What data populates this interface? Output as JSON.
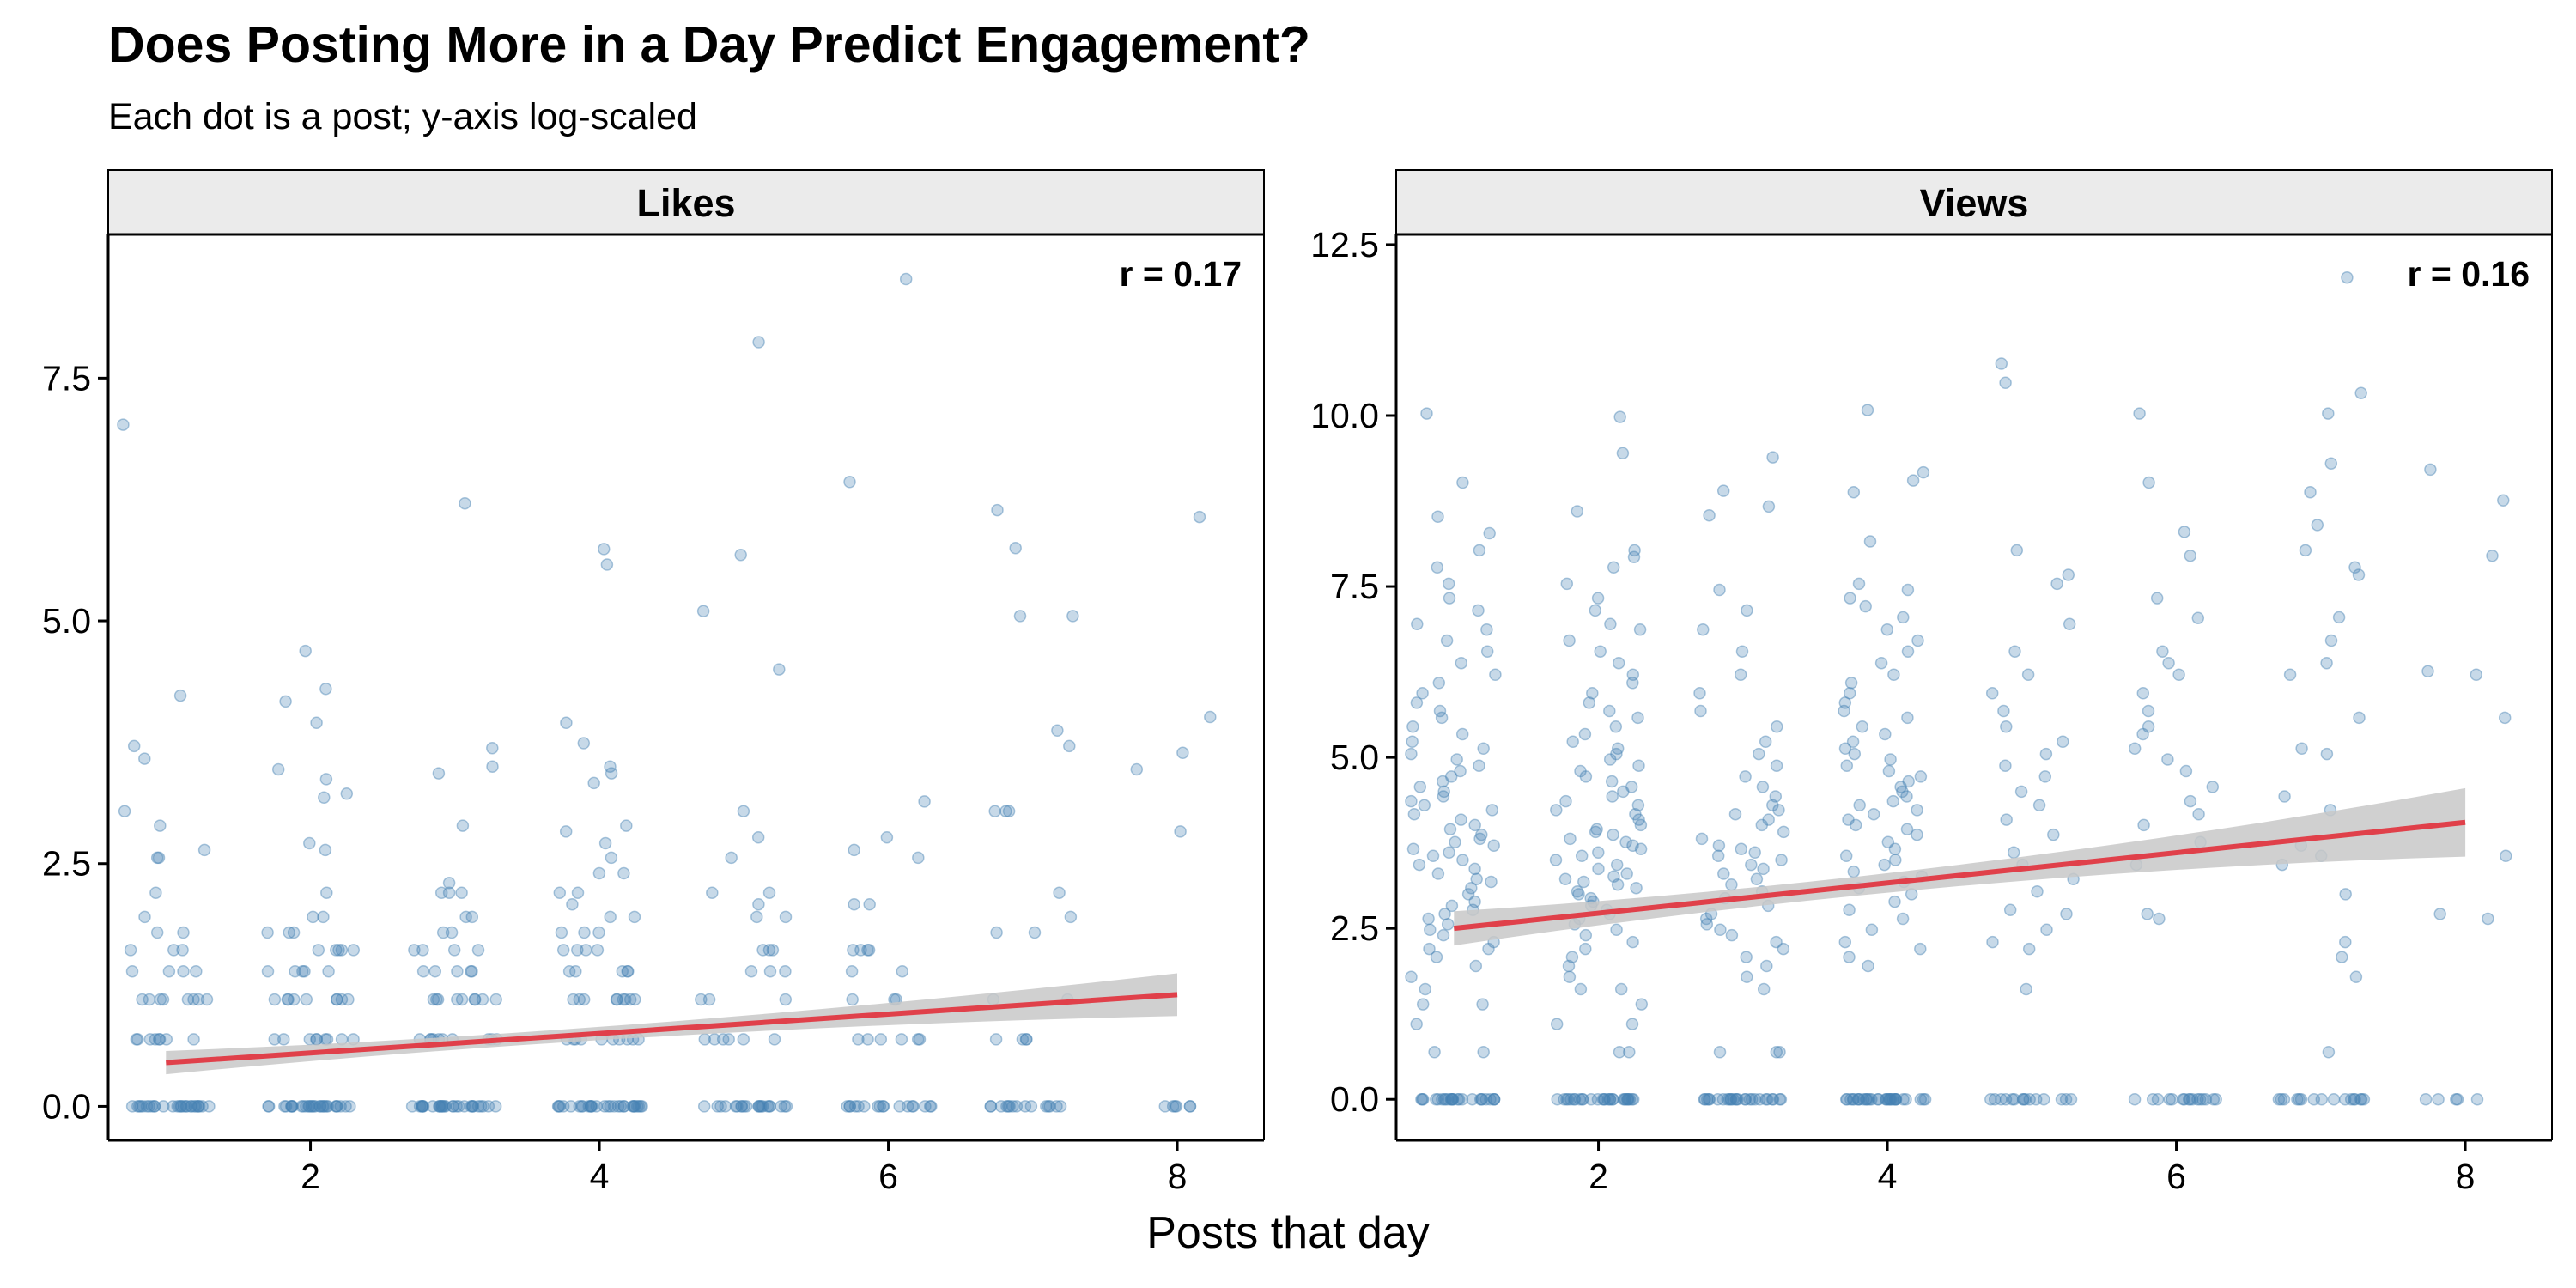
{
  "header": {
    "title": "Does Posting More in a Day Predict Engagement?",
    "subtitle": "Each dot is a post; y-axis log-scaled"
  },
  "colors": {
    "points": "#4682b4",
    "fit_line": "#e0404a",
    "ribbon": "#c8c8c8",
    "strip": "#ebebeb"
  },
  "chart_data": [
    {
      "type": "scatter",
      "facet": "Likes",
      "annotation": "r = 0.17",
      "xlabel": "Posts that day",
      "ylabel": "",
      "ylabel_scale": "log",
      "xlim": [
        0.6,
        8.6
      ],
      "ylim": [
        -0.35,
        8.98
      ],
      "xticks": [
        2,
        4,
        6,
        8
      ],
      "xtick_labels": [
        "2",
        "4",
        "6",
        "8"
      ],
      "yticks": [
        0,
        2.5,
        5,
        7.5
      ],
      "ytick_labels": [
        "0.0",
        "2.5",
        "5.0",
        "7.5"
      ],
      "grid": false,
      "fit": {
        "x": [
          1,
          8
        ],
        "y": [
          0.45,
          1.15
        ],
        "ci_halfwidth": [
          0.12,
          0.22
        ]
      },
      "points_by_day": [
        {
          "x": 1,
          "values": [
            0,
            0,
            0,
            0,
            0,
            0,
            0,
            0,
            0,
            0,
            0,
            0,
            0,
            0,
            0,
            0,
            0,
            0,
            0,
            0,
            0,
            0,
            0,
            0,
            0,
            0,
            0,
            0,
            0.69,
            0.69,
            0.69,
            0.69,
            0.69,
            0.69,
            0.69,
            0.69,
            1.1,
            1.1,
            1.1,
            1.1,
            1.1,
            1.1,
            1.1,
            1.1,
            1.39,
            1.39,
            1.39,
            1.39,
            1.61,
            1.61,
            1.61,
            1.79,
            1.79,
            1.95,
            2.2,
            2.56,
            2.56,
            2.64,
            2.89,
            3.04,
            3.58,
            3.71,
            4.23,
            7.02
          ]
        },
        {
          "x": 2,
          "values": [
            0,
            0,
            0,
            0,
            0,
            0,
            0,
            0,
            0,
            0,
            0,
            0,
            0,
            0,
            0,
            0,
            0,
            0,
            0,
            0,
            0,
            0,
            0,
            0,
            0,
            0,
            0,
            0,
            0,
            0,
            0.69,
            0.69,
            0.69,
            0.69,
            0.69,
            0.69,
            0.69,
            0.69,
            0.69,
            1.1,
            1.1,
            1.1,
            1.1,
            1.1,
            1.1,
            1.1,
            1.1,
            1.1,
            1.39,
            1.39,
            1.39,
            1.39,
            1.39,
            1.61,
            1.61,
            1.61,
            1.61,
            1.61,
            1.79,
            1.79,
            1.79,
            1.95,
            1.95,
            2.2,
            2.64,
            2.71,
            3.18,
            3.22,
            3.37,
            3.47,
            3.95,
            4.17,
            4.3,
            4.69
          ]
        },
        {
          "x": 3,
          "values": [
            0,
            0,
            0,
            0,
            0,
            0,
            0,
            0,
            0,
            0,
            0,
            0,
            0,
            0,
            0,
            0,
            0,
            0,
            0,
            0,
            0,
            0,
            0,
            0,
            0,
            0,
            0,
            0,
            0,
            0,
            0.69,
            0.69,
            0.69,
            0.69,
            0.69,
            0.69,
            0.69,
            0.69,
            0.69,
            0.69,
            1.1,
            1.1,
            1.1,
            1.1,
            1.1,
            1.1,
            1.1,
            1.1,
            1.1,
            1.39,
            1.39,
            1.39,
            1.39,
            1.39,
            1.61,
            1.61,
            1.61,
            1.61,
            1.79,
            1.79,
            1.95,
            1.95,
            2.2,
            2.2,
            2.2,
            2.3,
            2.89,
            3.43,
            3.5,
            3.69,
            6.21
          ]
        },
        {
          "x": 4,
          "values": [
            0,
            0,
            0,
            0,
            0,
            0,
            0,
            0,
            0,
            0,
            0,
            0,
            0,
            0,
            0,
            0,
            0,
            0,
            0,
            0,
            0,
            0,
            0,
            0,
            0,
            0,
            0,
            0,
            0,
            0,
            0.69,
            0.69,
            0.69,
            0.69,
            0.69,
            0.69,
            0.69,
            0.69,
            0.69,
            0.69,
            1.1,
            1.1,
            1.1,
            1.1,
            1.1,
            1.1,
            1.1,
            1.1,
            1.1,
            1.39,
            1.39,
            1.39,
            1.39,
            1.39,
            1.61,
            1.61,
            1.61,
            1.61,
            1.79,
            1.79,
            1.79,
            1.95,
            1.95,
            2.08,
            2.2,
            2.2,
            2.4,
            2.4,
            2.56,
            2.71,
            2.83,
            2.89,
            3.33,
            3.43,
            3.5,
            3.74,
            3.95,
            5.58,
            5.74
          ]
        },
        {
          "x": 5,
          "values": [
            0,
            0,
            0,
            0,
            0,
            0,
            0,
            0,
            0,
            0,
            0,
            0,
            0,
            0,
            0,
            0,
            0,
            0,
            0,
            0,
            0,
            0.69,
            0.69,
            0.69,
            0.69,
            0.69,
            0.69,
            1.1,
            1.1,
            1.1,
            1.39,
            1.39,
            1.39,
            1.61,
            1.61,
            1.61,
            1.95,
            1.95,
            2.08,
            2.2,
            2.2,
            2.56,
            2.77,
            3.04,
            4.5,
            5.68,
            5.1,
            7.87
          ]
        },
        {
          "x": 6,
          "values": [
            0,
            0,
            0,
            0,
            0,
            0,
            0,
            0,
            0,
            0,
            0,
            0,
            0,
            0,
            0,
            0,
            0,
            0.69,
            0.69,
            0.69,
            0.69,
            0.69,
            0.69,
            1.1,
            1.1,
            1.1,
            1.39,
            1.39,
            1.61,
            1.61,
            1.61,
            1.61,
            2.08,
            2.08,
            2.56,
            2.64,
            2.77,
            3.14,
            6.43,
            8.52
          ]
        },
        {
          "x": 7,
          "values": [
            0,
            0,
            0,
            0,
            0,
            0,
            0,
            0,
            0,
            0,
            0,
            0,
            0,
            0,
            0,
            0.69,
            0.69,
            0.69,
            0.69,
            1.1,
            1.1,
            1.79,
            1.79,
            1.95,
            2.2,
            3.04,
            3.04,
            3.04,
            3.71,
            3.87,
            5.05,
            5.05,
            5.75,
            6.14
          ]
        },
        {
          "x": 8,
          "values": [
            0,
            0,
            0,
            0,
            0,
            0,
            2.83,
            3.47,
            3.64,
            4.01,
            6.07
          ]
        }
      ]
    },
    {
      "type": "scatter",
      "facet": "Views",
      "annotation": "r = 0.16",
      "xlabel": "Posts that day",
      "ylabel": "",
      "ylabel_scale": "log",
      "xlim": [
        0.6,
        8.6
      ],
      "ylim": [
        -0.6,
        12.65
      ],
      "xticks": [
        2,
        4,
        6,
        8
      ],
      "xtick_labels": [
        "2",
        "4",
        "6",
        "8"
      ],
      "yticks": [
        0,
        2.5,
        5,
        7.5,
        10,
        12.5
      ],
      "ytick_labels": [
        "0.0",
        "2.5",
        "5.0",
        "7.5",
        "10.0",
        "12.5"
      ],
      "grid": false,
      "fit": {
        "x": [
          1,
          8
        ],
        "y": [
          2.5,
          4.05
        ],
        "ci_halfwidth": [
          0.25,
          0.5
        ]
      },
      "points_by_day": [
        {
          "x": 1,
          "values": [
            0,
            0,
            0,
            0,
            0,
            0,
            0,
            0,
            0,
            0,
            0,
            0,
            0,
            0,
            0,
            0,
            0,
            0,
            0,
            0,
            0,
            0,
            0,
            0,
            0,
            0,
            0.69,
            0.69,
            1.1,
            1.39,
            1.39,
            1.61,
            1.79,
            1.95,
            2.08,
            2.2,
            2.2,
            2.3,
            2.4,
            2.48,
            2.56,
            2.64,
            2.71,
            2.77,
            2.83,
            2.89,
            3.0,
            3.09,
            3.18,
            3.22,
            3.3,
            3.37,
            3.43,
            3.5,
            3.56,
            3.61,
            3.66,
            3.71,
            3.76,
            3.81,
            3.87,
            3.95,
            4.01,
            4.09,
            4.17,
            4.23,
            4.3,
            4.36,
            4.43,
            4.5,
            4.57,
            4.65,
            4.72,
            4.8,
            4.88,
            4.97,
            5.05,
            5.13,
            5.23,
            5.34,
            5.45,
            5.58,
            5.68,
            5.8,
            5.94,
            6.09,
            6.21,
            6.38,
            6.55,
            6.71,
            6.87,
            6.95,
            7.15,
            7.33,
            7.54,
            7.78,
            8.03,
            8.28,
            8.52,
            9.02,
            10.03
          ]
        },
        {
          "x": 2,
          "values": [
            0,
            0,
            0,
            0,
            0,
            0,
            0,
            0,
            0,
            0,
            0,
            0,
            0,
            0,
            0,
            0,
            0,
            0,
            0,
            0,
            0,
            0,
            0,
            0,
            0,
            0,
            0,
            0,
            0,
            0.69,
            0.69,
            1.1,
            1.1,
            1.39,
            1.61,
            1.61,
            1.79,
            1.95,
            2.08,
            2.2,
            2.3,
            2.4,
            2.48,
            2.56,
            2.64,
            2.71,
            2.77,
            2.83,
            2.89,
            2.94,
            3.0,
            3.04,
            3.09,
            3.14,
            3.18,
            3.22,
            3.26,
            3.3,
            3.37,
            3.43,
            3.5,
            3.56,
            3.61,
            3.66,
            3.71,
            3.76,
            3.81,
            3.87,
            3.91,
            3.95,
            4.01,
            4.09,
            4.17,
            4.23,
            4.3,
            4.36,
            4.43,
            4.5,
            4.57,
            4.65,
            4.72,
            4.8,
            4.88,
            4.97,
            5.05,
            5.13,
            5.23,
            5.34,
            5.45,
            5.58,
            5.68,
            5.8,
            5.94,
            6.09,
            6.21,
            6.38,
            6.55,
            6.71,
            6.87,
            6.95,
            7.15,
            7.33,
            7.54,
            7.78,
            7.93,
            8.03,
            8.6,
            9.45,
            9.98
          ]
        },
        {
          "x": 3,
          "values": [
            0,
            0,
            0,
            0,
            0,
            0,
            0,
            0,
            0,
            0,
            0,
            0,
            0,
            0,
            0,
            0,
            0,
            0,
            0,
            0,
            0,
            0,
            0,
            0,
            0,
            0,
            0,
            0.69,
            0.69,
            0.69,
            1.61,
            1.79,
            1.95,
            2.08,
            2.2,
            2.3,
            2.4,
            2.48,
            2.56,
            2.64,
            2.71,
            2.83,
            2.94,
            3.04,
            3.14,
            3.22,
            3.3,
            3.37,
            3.43,
            3.5,
            3.56,
            3.61,
            3.66,
            3.71,
            3.81,
            3.91,
            4.01,
            4.09,
            4.17,
            4.23,
            4.3,
            4.43,
            4.57,
            4.72,
            4.88,
            5.05,
            5.23,
            5.45,
            5.68,
            5.94,
            6.21,
            6.55,
            6.87,
            7.15,
            7.45,
            8.54,
            8.67,
            8.9,
            9.39
          ]
        },
        {
          "x": 4,
          "values": [
            0,
            0,
            0,
            0,
            0,
            0,
            0,
            0,
            0,
            0,
            0,
            0,
            0,
            0,
            0,
            0,
            0,
            0,
            0,
            0,
            0,
            0,
            0,
            0,
            0,
            0,
            0,
            0,
            0,
            0,
            0,
            0,
            0,
            1.95,
            2.08,
            2.2,
            2.3,
            2.48,
            2.64,
            2.77,
            2.89,
            3.0,
            3.09,
            3.18,
            3.26,
            3.33,
            3.43,
            3.5,
            3.56,
            3.66,
            3.76,
            3.87,
            3.95,
            4.01,
            4.09,
            4.17,
            4.23,
            4.3,
            4.36,
            4.43,
            4.5,
            4.57,
            4.65,
            4.72,
            4.8,
            4.88,
            4.97,
            5.05,
            5.13,
            5.23,
            5.34,
            5.45,
            5.58,
            5.68,
            5.8,
            5.94,
            6.09,
            6.21,
            6.38,
            6.55,
            6.71,
            6.87,
            7.05,
            7.21,
            7.33,
            7.45,
            7.54,
            8.16,
            8.88,
            9.05,
            9.17,
            10.08
          ]
        },
        {
          "x": 5,
          "values": [
            0,
            0,
            0,
            0,
            0,
            0,
            0,
            0,
            0,
            0,
            0,
            0,
            0,
            0,
            0,
            1.61,
            2.2,
            2.3,
            2.48,
            2.71,
            2.77,
            3.04,
            3.22,
            3.43,
            3.61,
            3.87,
            4.09,
            4.3,
            4.5,
            4.72,
            4.88,
            5.05,
            5.23,
            5.45,
            5.68,
            5.94,
            6.21,
            6.55,
            6.95,
            7.54,
            7.67,
            8.03,
            10.48,
            10.76
          ]
        },
        {
          "x": 6,
          "values": [
            0,
            0,
            0,
            0,
            0,
            0,
            0,
            0,
            0,
            0,
            0,
            0,
            0,
            0,
            0,
            0,
            2.64,
            2.71,
            3.43,
            3.76,
            4.01,
            4.17,
            4.36,
            4.57,
            4.8,
            4.97,
            5.13,
            5.34,
            5.45,
            5.68,
            5.94,
            6.21,
            6.38,
            6.55,
            7.04,
            7.33,
            7.95,
            8.3,
            9.02,
            10.03
          ]
        },
        {
          "x": 7,
          "values": [
            0,
            0,
            0,
            0,
            0,
            0,
            0,
            0,
            0,
            0,
            0,
            0,
            0,
            0,
            0,
            0,
            0.69,
            1.79,
            2.08,
            2.3,
            3.0,
            3.43,
            3.56,
            3.71,
            4.23,
            4.43,
            5.05,
            5.13,
            5.58,
            6.21,
            6.38,
            6.71,
            7.05,
            7.67,
            7.78,
            8.03,
            8.4,
            8.88,
            9.3,
            10.03,
            10.33,
            12.02
          ]
        },
        {
          "x": 8,
          "values": [
            0,
            0,
            0,
            0,
            0,
            2.64,
            2.71,
            3.56,
            5.58,
            6.21,
            6.26,
            7.95,
            8.76,
            9.21
          ]
        }
      ]
    }
  ],
  "footer": {
    "xlabel": "Posts that day"
  }
}
